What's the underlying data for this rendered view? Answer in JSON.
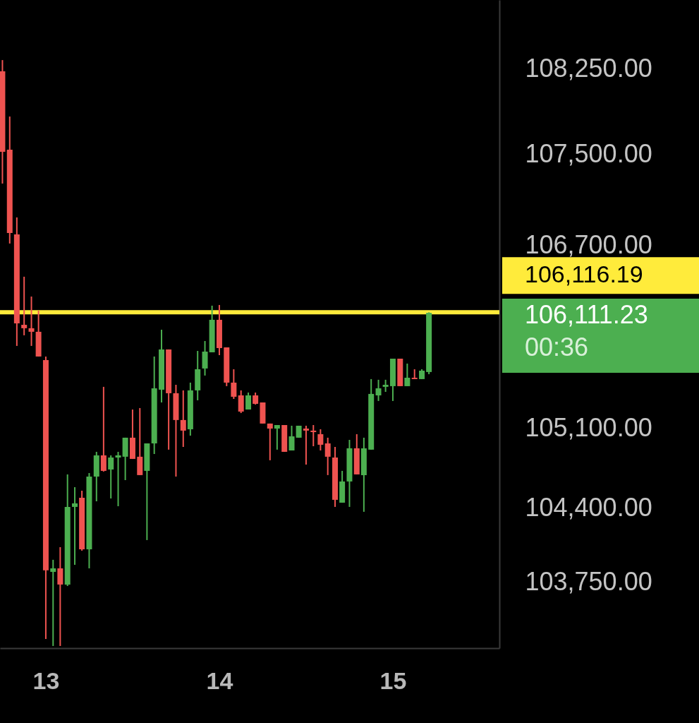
{
  "chart_data": {
    "type": "candlestick",
    "x": [
      12.75,
      12.792,
      12.833,
      12.875,
      12.917,
      12.958,
      13,
      13.042,
      13.083,
      13.125,
      13.167,
      13.208,
      13.25,
      13.292,
      13.333,
      13.375,
      13.417,
      13.458,
      13.5,
      13.542,
      13.583,
      13.625,
      13.667,
      13.708,
      13.75,
      13.792,
      13.833,
      13.875,
      13.917,
      13.958,
      14,
      14.042,
      14.083,
      14.125,
      14.167,
      14.208,
      14.25,
      14.292,
      14.333,
      14.375,
      14.417,
      14.458,
      14.5,
      14.542,
      14.583,
      14.625,
      14.667,
      14.708,
      14.75,
      14.792,
      14.833,
      14.875,
      14.917,
      14.958,
      15,
      15.042,
      15.083,
      15.125,
      15.167,
      15.208
    ],
    "ohlc": [
      [
        108229,
        108328,
        107245,
        107524
      ],
      [
        107542,
        107833,
        106719,
        106811
      ],
      [
        106799,
        106948,
        105821,
        106019
      ],
      [
        106006,
        106428,
        105914,
        105976
      ],
      [
        105976,
        106254,
        105821,
        105945
      ],
      [
        105945,
        106130,
        105728,
        105728
      ],
      [
        105697,
        105728,
        103251,
        103852
      ],
      [
        103839,
        103945,
        103189,
        103870
      ],
      [
        103870,
        104056,
        103189,
        103728
      ],
      [
        103728,
        104694,
        103715,
        104409
      ],
      [
        104409,
        104582,
        103901,
        104440
      ],
      [
        104489,
        104551,
        104025,
        104037
      ],
      [
        104037,
        104706,
        103870,
        104675
      ],
      [
        104675,
        104892,
        104458,
        104861
      ],
      [
        104861,
        105462,
        104719,
        104725
      ],
      [
        104737,
        104861,
        104483,
        104842
      ],
      [
        104842,
        104892,
        104415,
        104861
      ],
      [
        104849,
        105016,
        104644,
        105016
      ],
      [
        105016,
        105263,
        104830,
        104830
      ],
      [
        104849,
        105276,
        104688,
        104688
      ],
      [
        104725,
        104966,
        104118,
        104966
      ],
      [
        104966,
        105728,
        104873,
        105449
      ],
      [
        105437,
        105963,
        105325,
        105790
      ],
      [
        105790,
        105790,
        104911,
        105406
      ],
      [
        105406,
        105480,
        104675,
        105171
      ],
      [
        105171,
        105431,
        104935,
        105078
      ],
      [
        105090,
        105499,
        105034,
        105431
      ],
      [
        105431,
        105777,
        105344,
        105616
      ],
      [
        105623,
        105864,
        105561,
        105771
      ],
      [
        105765,
        106174,
        105765,
        106050
      ],
      [
        106050,
        106180,
        105740,
        105802
      ],
      [
        105808,
        105808,
        105468,
        105499
      ],
      [
        105499,
        105616,
        105356,
        105375
      ],
      [
        105387,
        105431,
        105232,
        105245
      ],
      [
        105263,
        105412,
        105263,
        105387
      ],
      [
        105387,
        105412,
        105307,
        105313
      ],
      [
        105325,
        105325,
        105140,
        105140
      ],
      [
        105140,
        105140,
        104818,
        105096
      ],
      [
        105096,
        105127,
        104911,
        105127
      ],
      [
        105127,
        105127,
        104892,
        104892
      ],
      [
        104904,
        105121,
        104904,
        105028
      ],
      [
        105016,
        105121,
        105016,
        105121
      ],
      [
        105096,
        105121,
        104780,
        105078
      ],
      [
        105078,
        105127,
        104941,
        105065
      ],
      [
        105047,
        105090,
        104904,
        104954
      ],
      [
        104966,
        105016,
        104688,
        104849
      ],
      [
        104842,
        104935,
        104409,
        104471
      ],
      [
        104446,
        104725,
        104446,
        104632
      ],
      [
        104632,
        104997,
        104409,
        104923
      ],
      [
        104923,
        105047,
        104694,
        104694
      ],
      [
        104688,
        105016,
        104366,
        104923
      ],
      [
        104911,
        105530,
        104911,
        105400
      ],
      [
        105387,
        105524,
        105338,
        105449
      ],
      [
        105462,
        105524,
        105418,
        105480
      ],
      [
        105468,
        105709,
        105338,
        105709
      ],
      [
        105709,
        105709,
        105468,
        105468
      ],
      [
        105468,
        105666,
        105468,
        105542
      ],
      [
        105542,
        105616,
        105530,
        105530
      ],
      [
        105530,
        105616,
        105530,
        105604
      ],
      [
        105592,
        106116,
        105573,
        106111.23
      ]
    ],
    "colors": [
      "#ef5350",
      "#ef5350",
      "#ef5350",
      "#ef5350",
      "#ef5350",
      "#ef5350",
      "#ef5350",
      "#4caf50",
      "#ef5350",
      "#4caf50",
      "#4caf50",
      "#ef5350",
      "#4caf50",
      "#4caf50",
      "#ef5350",
      "#4caf50",
      "#4caf50",
      "#4caf50",
      "#ef5350",
      "#ef5350",
      "#4caf50",
      "#4caf50",
      "#4caf50",
      "#ef5350",
      "#ef5350",
      "#ef5350",
      "#4caf50",
      "#4caf50",
      "#4caf50",
      "#4caf50",
      "#ef5350",
      "#ef5350",
      "#ef5350",
      "#ef5350",
      "#4caf50",
      "#ef5350",
      "#ef5350",
      "#ef5350",
      "#4caf50",
      "#ef5350",
      "#4caf50",
      "#4caf50",
      "#ef5350",
      "#ef5350",
      "#ef5350",
      "#ef5350",
      "#ef5350",
      "#4caf50",
      "#4caf50",
      "#ef5350",
      "#4caf50",
      "#4caf50",
      "#4caf50",
      "#4caf50",
      "#4caf50",
      "#ef5350",
      "#4caf50",
      "#ef5350",
      "#4caf50",
      "#4caf50"
    ],
    "xlim": [
      12.736,
      15.614
    ],
    "xticks": [
      13,
      14,
      15
    ],
    "ylim": [
      103170,
      108855
    ],
    "yticks": [
      {
        "value": 103750,
        "label": "103,750.00"
      },
      {
        "value": 104400,
        "label": "104,400.00"
      },
      {
        "value": 105100,
        "label": "105,100.00"
      },
      {
        "value": 106700,
        "label": "106,700.00"
      },
      {
        "value": 107500,
        "label": "107,500.00"
      },
      {
        "value": 108250,
        "label": "108,250.00"
      }
    ],
    "ref_lines": [
      {
        "axis": "y",
        "value": 106116.19,
        "label": "106,116.19",
        "color": "#ffeb3b",
        "line_style": "solid"
      }
    ],
    "annotations": [
      "106,111.23",
      "00:36"
    ],
    "grid": false
  }
}
